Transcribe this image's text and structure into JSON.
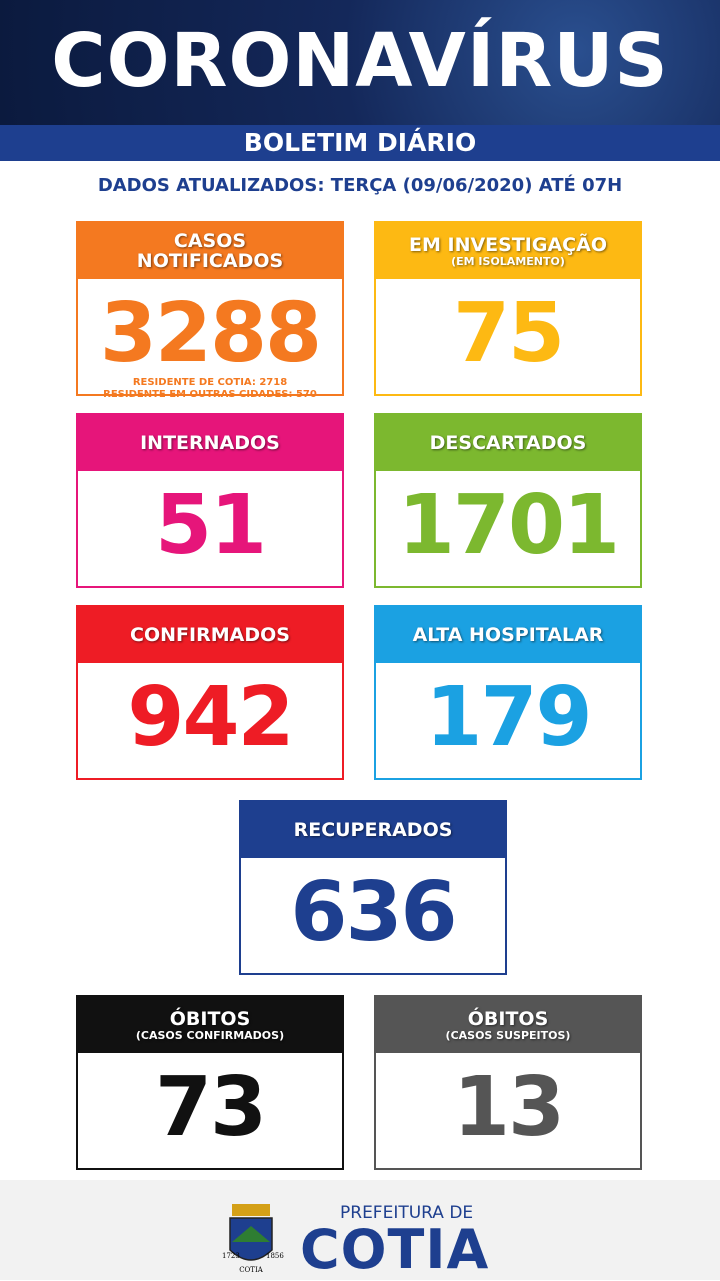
{
  "header": {
    "title": "CORONAVÍRUS",
    "subtitle": "BOLETIM DIÁRIO",
    "date": "DADOS ATUALIZADOS: TERÇA (09/06/2020) ATÉ 07H"
  },
  "cards": [
    {
      "title": "CASOS NOTIFICADOS",
      "color": "#f47920",
      "value": 3288,
      "details": [
        "RESIDENTE DE COTIA: 2718",
        "RESIDENTE EM OUTRAS CIDADES: 570"
      ]
    },
    {
      "title": "EM INVESTIGAÇÃO",
      "note": "(EM ISOLAMENTO)",
      "color": "#fdb913",
      "value": 75
    },
    {
      "title": "INTERNADOS",
      "color": "#e6157a",
      "value": 51
    },
    {
      "title": "DESCARTADOS",
      "color": "#7cb82f",
      "value": 1701
    },
    {
      "title": "CONFIRMADOS",
      "color": "#ee1c25",
      "value": 942
    },
    {
      "title": "ALTA HOSPITALAR",
      "color": "#1ba1e2",
      "value": 179
    },
    {
      "title": "RECUPERADOS",
      "color": "#1e3f8f",
      "value": 636
    },
    {
      "title": "ÓBITOS",
      "note": "(CASOS CONFIRMADOS)",
      "color": "#111111",
      "value": 73
    },
    {
      "title": "ÓBITOS",
      "note": "(CASOS SUSPEITOS)",
      "color": "#555555",
      "value": 13
    }
  ],
  "footer": {
    "line1": "PREFEITURA DE",
    "line2": "COTIA",
    "crest": [
      "1723",
      "COTIA",
      "1856"
    ]
  }
}
